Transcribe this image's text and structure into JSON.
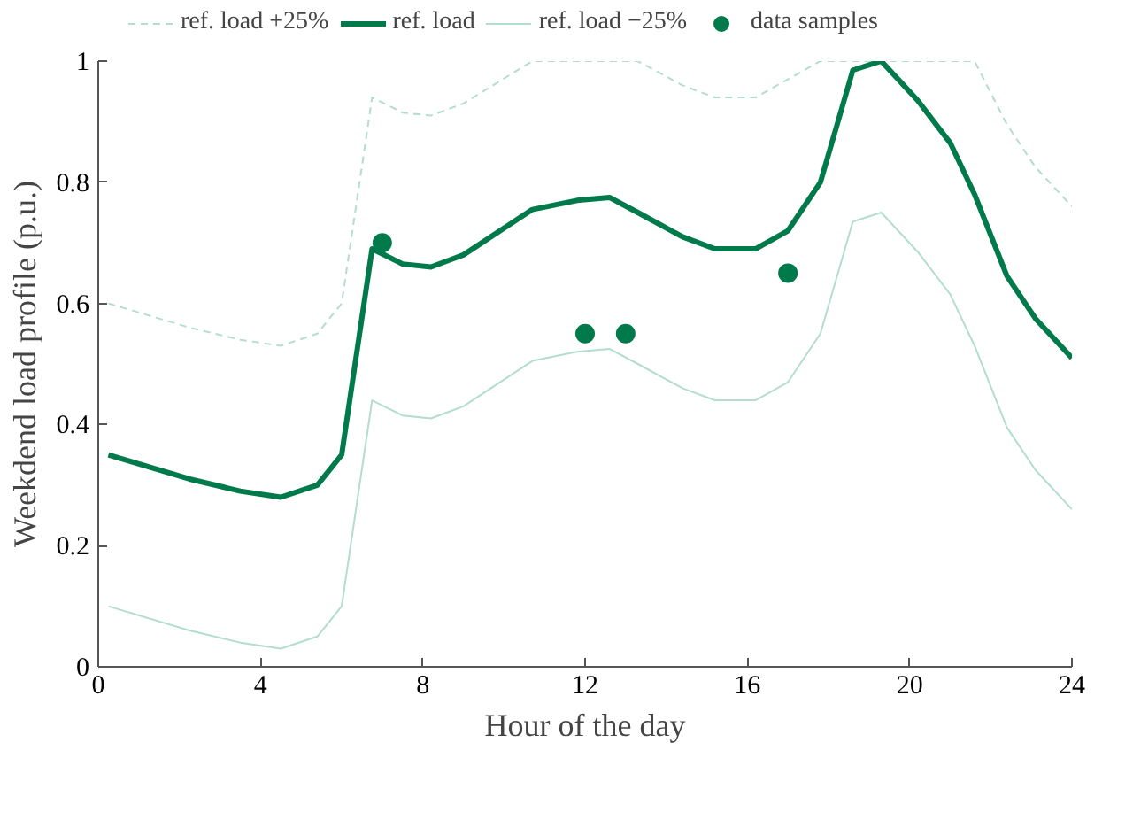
{
  "chart_data": {
    "type": "line",
    "xlabel": "Hour of the day",
    "ylabel": "Weekdend load profile (p.u.)",
    "xlim": [
      0,
      24
    ],
    "ylim": [
      0,
      1
    ],
    "xticks": [
      0,
      4,
      8,
      12,
      16,
      20,
      24
    ],
    "yticks": [
      0,
      0.2,
      0.4,
      0.6,
      0.8,
      1
    ],
    "grid": false,
    "legend": "top",
    "x": [
      0.25,
      2.25,
      3.5,
      4.5,
      5.4,
      6,
      6.75,
      7.5,
      8.2,
      9,
      10.7,
      11.8,
      12.6,
      13.3,
      14.4,
      15.2,
      16.2,
      17,
      17.8,
      18.6,
      19.3,
      20.2,
      21,
      21.6,
      22.4,
      23.1,
      24
    ],
    "series": [
      {
        "name": "ref. load +25%",
        "color": "#b3ddd0",
        "line_style": "dashed",
        "values": [
          0.6,
          0.56,
          0.54,
          0.53,
          0.55,
          0.6,
          0.94,
          0.915,
          0.91,
          0.93,
          1,
          1,
          1,
          1,
          0.96,
          0.94,
          0.94,
          0.97,
          1,
          1,
          1,
          1,
          1,
          1,
          0.895,
          0.825,
          0.76
        ]
      },
      {
        "name": "ref. load",
        "color": "#007a4b",
        "line_style": "solid",
        "values": [
          0.35,
          0.31,
          0.29,
          0.28,
          0.3,
          0.35,
          0.69,
          0.665,
          0.66,
          0.68,
          0.755,
          0.77,
          0.775,
          0.75,
          0.71,
          0.69,
          0.69,
          0.72,
          0.8,
          0.985,
          1,
          0.935,
          0.865,
          0.78,
          0.645,
          0.575,
          0.51
        ]
      },
      {
        "name": "ref. load −25%",
        "color": "#b3ddd0",
        "line_style": "solid",
        "values": [
          0.1,
          0.06,
          0.04,
          0.03,
          0.05,
          0.1,
          0.44,
          0.415,
          0.41,
          0.43,
          0.505,
          0.52,
          0.525,
          0.5,
          0.46,
          0.44,
          0.44,
          0.47,
          0.55,
          0.735,
          0.75,
          0.685,
          0.615,
          0.53,
          0.395,
          0.325,
          0.26
        ]
      },
      {
        "name": "data samples",
        "type": "scatter",
        "marker": "circle",
        "color": "#007a4b",
        "x": [
          7,
          12,
          13,
          17
        ],
        "values": [
          0.7,
          0.55,
          0.55,
          0.65
        ]
      }
    ]
  }
}
